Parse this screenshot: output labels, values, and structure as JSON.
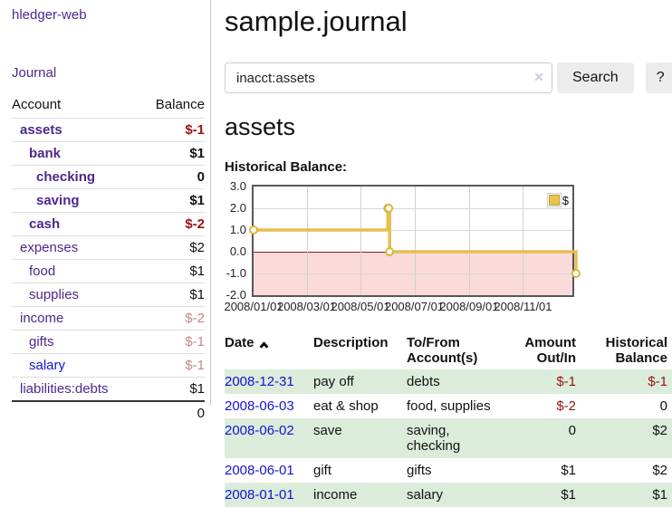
{
  "sidebar": {
    "app_title": "hledger-web",
    "nav": {
      "journal_label": "Journal"
    },
    "accounts_table": {
      "headers": {
        "account": "Account",
        "balance": "Balance"
      },
      "rows": [
        {
          "name": "assets",
          "balance": "$-1",
          "level": 1,
          "bold": true,
          "name_color": "purple",
          "balance_color": "neg"
        },
        {
          "name": "bank",
          "balance": "$1",
          "level": 2,
          "bold": true,
          "name_color": "purple",
          "balance_color": "default"
        },
        {
          "name": "checking",
          "balance": "0",
          "level": 3,
          "bold": true,
          "name_color": "purple",
          "balance_color": "default"
        },
        {
          "name": "saving",
          "balance": "$1",
          "level": 3,
          "bold": true,
          "name_color": "purple",
          "balance_color": "default"
        },
        {
          "name": "cash",
          "balance": "$-2",
          "level": 2,
          "bold": true,
          "name_color": "purple",
          "balance_color": "neg"
        },
        {
          "name": "expenses",
          "balance": "$2",
          "level": 1,
          "bold": false,
          "name_color": "purple",
          "balance_color": "default"
        },
        {
          "name": "food",
          "balance": "$1",
          "level": 2,
          "bold": false,
          "name_color": "purple",
          "balance_color": "default"
        },
        {
          "name": "supplies",
          "balance": "$1",
          "level": 2,
          "bold": false,
          "name_color": "purple",
          "balance_color": "default"
        },
        {
          "name": "income",
          "balance": "$-2",
          "level": 1,
          "bold": false,
          "name_color": "purple",
          "balance_color": "neg-soft"
        },
        {
          "name": "gifts",
          "balance": "$-1",
          "level": 2,
          "bold": false,
          "name_color": "purple",
          "balance_color": "neg-soft"
        },
        {
          "name": "salary",
          "balance": "$-1",
          "level": 2,
          "bold": false,
          "name_color": "blue",
          "balance_color": "neg-soft"
        },
        {
          "name": "liabilities:debts",
          "balance": "$1",
          "level": 1,
          "bold": false,
          "name_color": "purple",
          "balance_color": "default"
        }
      ],
      "total": "0"
    }
  },
  "header": {
    "title": "sample.journal"
  },
  "search": {
    "query": "inacct:assets",
    "clear_icon": "✕",
    "search_button": "Search",
    "help_button": "?"
  },
  "account_page": {
    "heading": "assets",
    "chart_label": "Historical Balance:"
  },
  "chart_data": {
    "type": "line",
    "step": true,
    "title": "Historical Balance:",
    "series": [
      {
        "name": "$",
        "color": "#e5bf50",
        "points": [
          {
            "date": "2008-01-01",
            "value": 1
          },
          {
            "date": "2008-06-01",
            "value": 2
          },
          {
            "date": "2008-06-02",
            "value": 2
          },
          {
            "date": "2008-06-03",
            "value": 0
          },
          {
            "date": "2008-12-31",
            "value": -1
          }
        ]
      }
    ],
    "ylim": [
      -2,
      3
    ],
    "yticks": [
      "3.0",
      "2.0",
      "1.0",
      "0.0",
      "-1.0",
      "-2.0"
    ],
    "x_range": [
      "2008-01-01",
      "2008-12-31"
    ],
    "xticks": [
      {
        "label": "2008/01/01",
        "date": "2008-01-01"
      },
      {
        "label": "2008/03/01",
        "date": "2008-03-01"
      },
      {
        "label": "2008/05/01",
        "date": "2008-05-01"
      },
      {
        "label": "2008/07/01",
        "date": "2008-07-01"
      },
      {
        "label": "2008/09/01",
        "date": "2008-09-01"
      },
      {
        "label": "2008/11/01",
        "date": "2008-11-01"
      }
    ],
    "legend": {
      "label": "$",
      "position": "top-right"
    },
    "grid": true,
    "negative_region_color": "#fbdada",
    "zero_line_color": "#8b1a1a"
  },
  "register_table": {
    "headers": {
      "date": "Date",
      "description": "Description",
      "accounts": "To/From Account(s)",
      "amount": "Amount Out/In",
      "balance": "Historical Balance"
    },
    "rows": [
      {
        "date": "2008-12-31",
        "description": "pay off",
        "accounts": "debts",
        "amount": "$-1",
        "amount_neg": true,
        "balance": "$-1",
        "balance_neg": true
      },
      {
        "date": "2008-06-03",
        "description": "eat & shop",
        "accounts": "food, supplies",
        "amount": "$-2",
        "amount_neg": true,
        "balance": "0",
        "balance_neg": false
      },
      {
        "date": "2008-06-02",
        "description": "save",
        "accounts": "saving, checking",
        "amount": "0",
        "amount_neg": false,
        "balance": "$2",
        "balance_neg": false
      },
      {
        "date": "2008-06-01",
        "description": "gift",
        "accounts": "gifts",
        "amount": "$1",
        "amount_neg": false,
        "balance": "$2",
        "balance_neg": false
      },
      {
        "date": "2008-01-01",
        "description": "income",
        "accounts": "salary",
        "amount": "$1",
        "amount_neg": false,
        "balance": "$1",
        "balance_neg": false
      }
    ]
  }
}
